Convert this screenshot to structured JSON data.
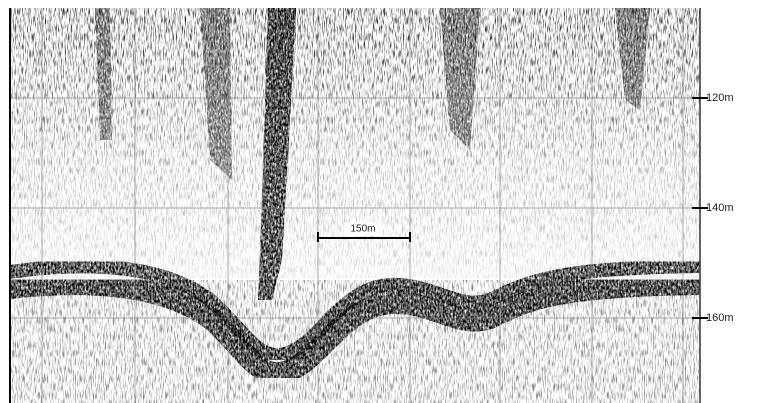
{
  "depth_labels": [
    "120m",
    "140m",
    "160m"
  ],
  "scale_bar": {
    "label": "150m"
  }
}
